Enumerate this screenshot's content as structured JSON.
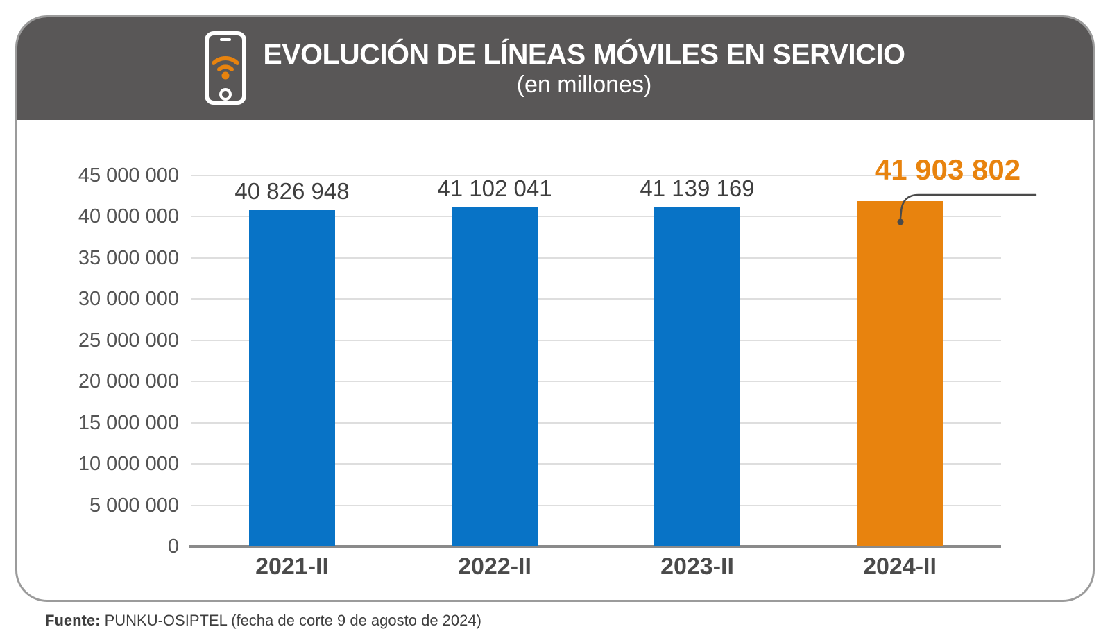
{
  "header": {
    "title": "EVOLUCIÓN DE LÍNEAS MÓVILES EN SERVICIO",
    "subtitle": "(en millones)"
  },
  "chart_data": {
    "type": "bar",
    "title": "EVOLUCIÓN DE LÍNEAS MÓVILES EN SERVICIO (en millones)",
    "categories": [
      "2021-II",
      "2022-II",
      "2023-II",
      "2024-II"
    ],
    "values": [
      40826948,
      41102041,
      41139169,
      41903802
    ],
    "value_labels": [
      "40 826 948",
      "41 102 041",
      "41 139 169",
      "41 903 802"
    ],
    "bar_colors": [
      "#0873C6",
      "#0873C6",
      "#0873C6",
      "#E8830E"
    ],
    "highlight_index": 3,
    "ylim": [
      0,
      45000000
    ],
    "ytick_step": 5000000,
    "ytick_labels": [
      "0",
      "5 000 000",
      "10 000 000",
      "15 000 000",
      "20 000 000",
      "25 000 000",
      "30 000 000",
      "35 000 000",
      "40 000 000",
      "45 000 000"
    ],
    "grid": true,
    "legend": "none",
    "xlabel": "",
    "ylabel": ""
  },
  "footer": {
    "source_label": "Fuente:",
    "source_text": "PUNKU-OSIPTEL (fecha de corte 9 de agosto de 2024)"
  },
  "colors": {
    "header_background": "#595757",
    "bar_blue": "#0873C6",
    "bar_orange": "#E8830E",
    "highlight_label": "#E8830E",
    "card_border": "#9B9B9B",
    "grid_line": "#DEDEDE",
    "axis_line": "#8A8A8A",
    "leader_line": "#4A4A4A",
    "text_dark": "#3E3E3E"
  },
  "icons": {
    "header_icon": "mobile-phone-wifi-icon"
  }
}
